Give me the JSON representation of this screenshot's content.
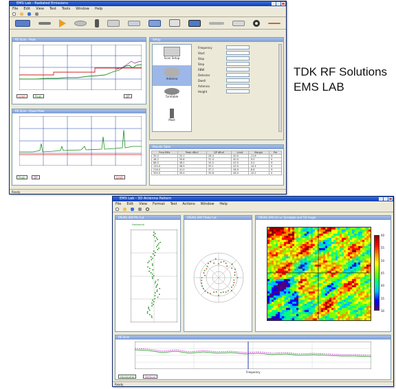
{
  "caption": {
    "line1": "TDK RF Solutions",
    "line2": "EMS LAB"
  },
  "window1": {
    "title": "EMS Lab - Radiated Emissions",
    "menu": [
      "File",
      "Edit",
      "View",
      "Test",
      "Tools",
      "Window",
      "Help"
    ],
    "panel_spectrum_title": "RE Scan - Peak",
    "panel_detail_title": "RE Scan - Quasi-Peak",
    "panel_setup_title": "Setup",
    "panel_table_title": "Results Table",
    "legend": [
      "Limit",
      "Peak",
      "QP"
    ],
    "status": "Ready",
    "setup_fields": [
      "Frequency",
      "Start",
      "Stop",
      "Step",
      "RBW",
      "Detector",
      "Dwell",
      "Antenna",
      "Height"
    ],
    "setup_items": [
      "Scan Setup",
      "Antenna",
      "Turntable",
      "Mast"
    ],
    "table_headers": [
      "Freq MHz",
      "Peak dBuV",
      "QP dBuV",
      "Limit",
      "Margin",
      "Pol"
    ],
    "table_rows": [
      [
        "30.0",
        "32.1",
        "28.4",
        "40.0",
        "-11.6",
        "H"
      ],
      [
        "48.2",
        "35.6",
        "31.0",
        "40.0",
        "-9.0",
        "V"
      ],
      [
        "88.5",
        "38.2",
        "34.5",
        "43.5",
        "-9.0",
        "H"
      ],
      [
        "120.0",
        "36.9",
        "33.1",
        "43.5",
        "-10.4",
        "V"
      ],
      [
        "216.0",
        "41.0",
        "37.2",
        "46.0",
        "-8.8",
        "H"
      ],
      [
        "300.0",
        "39.4",
        "35.8",
        "46.0",
        "-10.2",
        "V"
      ]
    ]
  },
  "window2": {
    "title": "EMS Lab - 3D Antenna Pattern",
    "menu": [
      "File",
      "Edit",
      "View",
      "Format",
      "Test",
      "Actions",
      "Window",
      "Help"
    ],
    "panel_cut_title": "(PEAK) EMI Phi Cut",
    "panel_polar_title": "(PEAK) EMI Theta Cut",
    "panel_heat_title": "(PEAK) EMI (V) vs Turntable and Tilt Angle",
    "panel_scan_title": "RE Scan",
    "xlabel": "Frequency",
    "legend": [
      "Horizontal",
      "Vertical"
    ],
    "status": "Ready",
    "colorbar_ticks": [
      "60",
      "55",
      "50",
      "45",
      "40",
      "35",
      "30"
    ]
  },
  "colors": {
    "titlebar": "#0a3db8",
    "trace_green": "#1a8f1a",
    "limit_red": "#d62020",
    "grid_blue": "#1f3fae"
  }
}
